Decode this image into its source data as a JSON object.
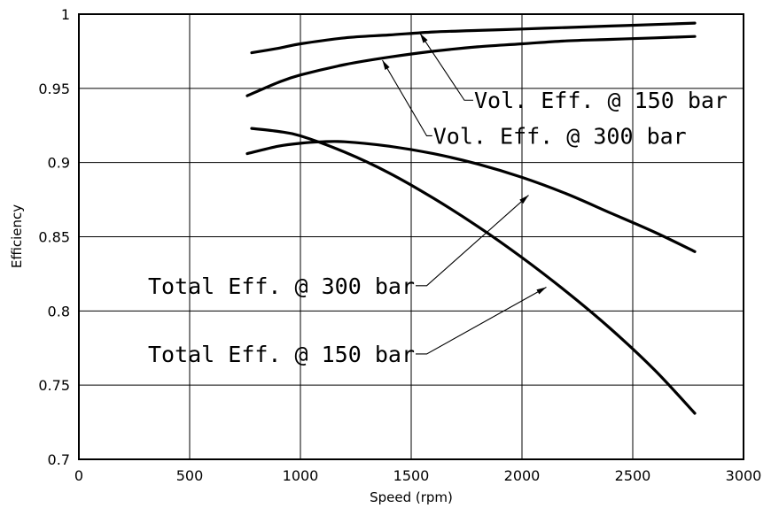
{
  "chart_data": {
    "type": "line",
    "title": "",
    "xlabel": "Speed (rpm)",
    "ylabel": "Efficiency",
    "xlim": [
      0,
      3000
    ],
    "ylim": [
      0.7,
      1.0
    ],
    "xticks": [
      0,
      500,
      1000,
      1500,
      2000,
      2500,
      3000
    ],
    "yticks": [
      0.7,
      0.75,
      0.8,
      0.85,
      0.9,
      0.95,
      1.0
    ],
    "xtick_labels": [
      "0",
      "500",
      "1000",
      "1500",
      "2000",
      "2500",
      "3000"
    ],
    "ytick_labels": [
      "0.7",
      "0.75",
      "0.8",
      "0.85",
      "0.9",
      "0.95",
      "1"
    ],
    "grid": true,
    "legend": "none",
    "series": [
      {
        "key": "vol150",
        "x": [
          780,
          900,
          1000,
          1200,
          1400,
          1600,
          1800,
          2000,
          2200,
          2400,
          2600,
          2780
        ],
        "y": [
          0.974,
          0.977,
          0.98,
          0.984,
          0.986,
          0.988,
          0.989,
          0.99,
          0.991,
          0.992,
          0.993,
          0.994
        ]
      },
      {
        "key": "vol300",
        "x": [
          760,
          900,
          1000,
          1200,
          1400,
          1600,
          1800,
          2000,
          2200,
          2400,
          2600,
          2780
        ],
        "y": [
          0.945,
          0.954,
          0.959,
          0.966,
          0.971,
          0.975,
          0.978,
          0.98,
          0.982,
          0.983,
          0.984,
          0.985
        ]
      },
      {
        "key": "tot150",
        "x": [
          780,
          900,
          1000,
          1200,
          1400,
          1600,
          1800,
          2000,
          2200,
          2400,
          2600,
          2780
        ],
        "y": [
          0.923,
          0.921,
          0.918,
          0.907,
          0.893,
          0.876,
          0.857,
          0.836,
          0.813,
          0.788,
          0.76,
          0.731
        ]
      },
      {
        "key": "tot300",
        "x": [
          760,
          900,
          1000,
          1100,
          1200,
          1400,
          1600,
          1800,
          2000,
          2200,
          2400,
          2600,
          2780
        ],
        "y": [
          0.906,
          0.911,
          0.913,
          0.914,
          0.914,
          0.911,
          0.906,
          0.899,
          0.89,
          0.879,
          0.866,
          0.853,
          0.84
        ]
      }
    ],
    "annotations": [
      {
        "key": "vol150",
        "text": "Vol. Eff. @ 150 bar",
        "target": [
          1540,
          0.987
        ],
        "elbow": [
          1740,
          0.942
        ],
        "label_at": [
          1780,
          0.942
        ]
      },
      {
        "key": "vol300",
        "text": "Vol. Eff. @ 300 bar",
        "target": [
          1370,
          0.969
        ],
        "elbow": [
          1570,
          0.918
        ],
        "label_at": [
          1595,
          0.918
        ]
      },
      {
        "key": "tot300",
        "text": "Total Eff. @ 300 bar",
        "target": [
          2030,
          0.878
        ],
        "elbow": [
          1570,
          0.817
        ],
        "label_at": [
          1520,
          0.817
        ]
      },
      {
        "key": "tot150",
        "text": "Total Eff. @ 150 bar",
        "target": [
          2110,
          0.816
        ],
        "elbow": [
          1570,
          0.771
        ],
        "label_at": [
          1520,
          0.771
        ]
      }
    ]
  }
}
